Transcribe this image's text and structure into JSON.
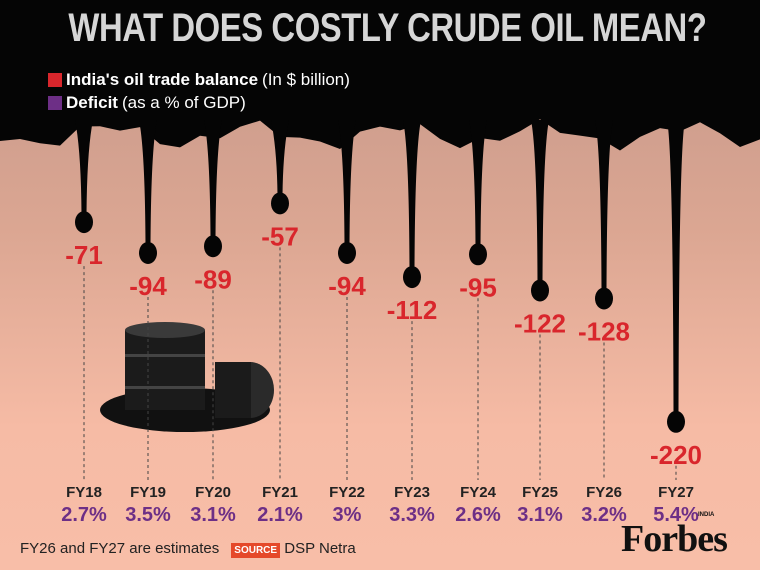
{
  "title": "WHAT DOES COSTLY CRUDE OIL MEAN?",
  "legend": [
    {
      "bold": "India's oil trade balance",
      "rest": "(In $ billion)",
      "color": "#d9262c"
    },
    {
      "bold": "Deficit",
      "rest": "(as a % of GDP)",
      "color": "#6d2f86"
    }
  ],
  "chart_data": {
    "type": "bar",
    "categories": [
      "FY18",
      "FY19",
      "FY20",
      "FY21",
      "FY22",
      "FY23",
      "FY24",
      "FY25",
      "FY26",
      "FY27"
    ],
    "series": [
      {
        "name": "India's oil trade balance",
        "unit": "$ billion",
        "values": [
          -71,
          -94,
          -89,
          -57,
          -94,
          -112,
          -95,
          -122,
          -128,
          -220
        ],
        "color": "#d9262c"
      },
      {
        "name": "Deficit",
        "unit": "% of GDP",
        "values": [
          2.7,
          3.5,
          3.1,
          2.1,
          3,
          3.3,
          2.6,
          3.1,
          3.2,
          5.4
        ],
        "color": "#6d2f86"
      }
    ]
  },
  "footer": {
    "note": "FY26 and FY27 are estimates",
    "source_label": "SOURCE",
    "source": "DSP Netra",
    "brand": "Forbes",
    "brand_sub": "INDIA"
  }
}
